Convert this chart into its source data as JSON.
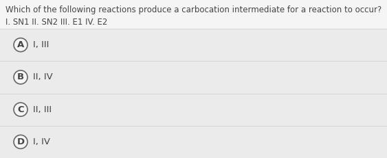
{
  "question_line1": "Which of the following reactions produce a carbocation intermediate for a reaction to occur?",
  "question_line2": "I. SN1 II. SN2 III. E1 IV. E2",
  "options": [
    {
      "label": "A",
      "text": "I, III"
    },
    {
      "label": "B",
      "text": "II, IV"
    },
    {
      "label": "C",
      "text": "II, III"
    },
    {
      "label": "D",
      "text": "I, IV"
    }
  ],
  "bg_color": "#f5f5f5",
  "option_bg_color": "#ebebeb",
  "option_border_color": "#cccccc",
  "text_color": "#444444",
  "circle_edge_color": "#666666",
  "circle_face_color": "#f5f5f5",
  "question_fontsize": 8.5,
  "option_fontsize": 9.5,
  "label_fontsize": 9.5
}
